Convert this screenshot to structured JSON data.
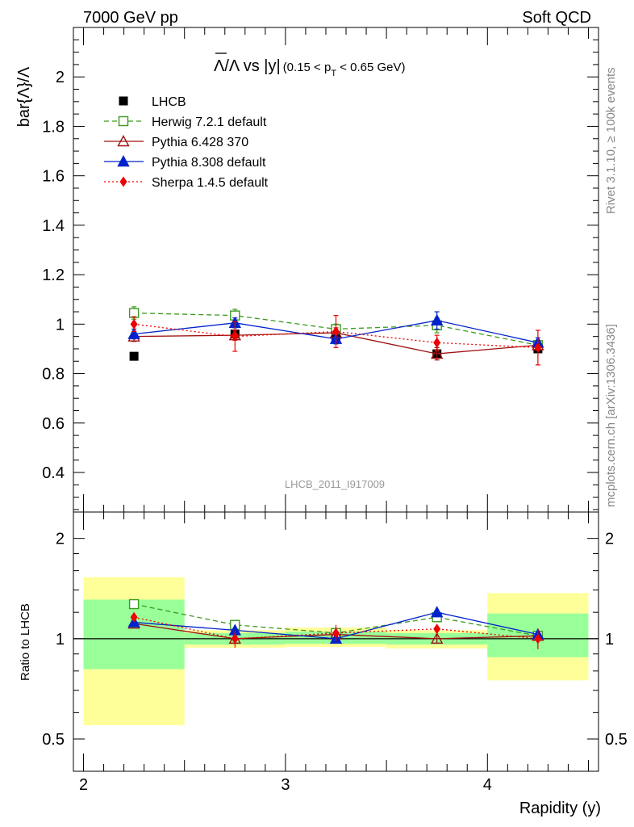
{
  "header": {
    "left": "7000 GeV pp",
    "right": "Soft QCD"
  },
  "side_labels": {
    "rivet": "Rivet 3.1.10, ≥ 100k events",
    "mcplots": "mcplots.cern.ch [arXiv:1306.3436]"
  },
  "chart_data": [
    {
      "type": "scatter",
      "panel": "main",
      "title_parts": {
        "quantity": "Λ/Λ vs |y|",
        "cut_open": "(0.15 < p",
        "cut_sub": "T",
        "cut_close": " < 0.65 GeV)"
      },
      "ylabel": "bar{Λ}/Λ",
      "xlim": [
        1.95,
        4.55
      ],
      "ylim": [
        0.24,
        2.2
      ],
      "yticks": [
        0.4,
        0.6,
        0.8,
        1.0,
        1.2,
        1.4,
        1.6,
        1.8,
        2.0
      ],
      "ytick_labels": [
        "0.4",
        "0.6",
        "0.8",
        "1",
        "1.2",
        "1.4",
        "1.6",
        "1.8",
        "2"
      ],
      "watermark": "LHCB_2011_I917009",
      "series": [
        {
          "name": "LHCB",
          "color": "#000000",
          "marker": "square-filled",
          "line": "none",
          "x": [
            2.25,
            2.75,
            3.25,
            3.75,
            4.25
          ],
          "y": [
            0.87,
            0.96,
            0.94,
            0.88,
            0.9
          ],
          "err": [
            0.01,
            0.01,
            0.01,
            0.01,
            0.01
          ]
        },
        {
          "name": "Herwig 7.2.1 default",
          "color": "#3a9a1e",
          "marker": "square-open",
          "line": "dashed",
          "x": [
            2.25,
            2.75,
            3.25,
            3.75,
            4.25
          ],
          "y": [
            1.045,
            1.035,
            0.98,
            0.995,
            0.915
          ],
          "err": [
            0.025,
            0.025,
            0.02,
            0.03,
            0.02
          ]
        },
        {
          "name": "Pythia 6.428 370",
          "color": "#a01010",
          "marker": "triangle-open",
          "line": "solid",
          "x": [
            2.25,
            2.75,
            3.25,
            3.75,
            4.25
          ],
          "y": [
            0.95,
            0.955,
            0.965,
            0.88,
            0.915
          ],
          "err": [
            0.02,
            0.02,
            0.02,
            0.025,
            0.02
          ]
        },
        {
          "name": "Pythia 8.308 default",
          "color": "#0022cc",
          "marker": "triangle-filled",
          "line": "solid",
          "x": [
            2.25,
            2.75,
            3.25,
            3.75,
            4.25
          ],
          "y": [
            0.96,
            1.005,
            0.94,
            1.015,
            0.925
          ],
          "err": [
            0.02,
            0.02,
            0.02,
            0.035,
            0.02
          ]
        },
        {
          "name": "Sherpa 1.4.5 default",
          "color": "#ee0000",
          "marker": "diamond-filled",
          "line": "dotted",
          "x": [
            2.25,
            2.75,
            3.25,
            3.75,
            4.25
          ],
          "y": [
            1.0,
            0.95,
            0.97,
            0.925,
            0.905
          ],
          "err": [
            0.03,
            0.06,
            0.065,
            0.03,
            0.07
          ]
        }
      ]
    },
    {
      "type": "scatter",
      "panel": "ratio",
      "ylabel": "Ratio to LHCB",
      "xlabel": "Rapidity (y)",
      "xlim": [
        1.95,
        4.55
      ],
      "ylim": [
        0.4,
        2.4
      ],
      "yscale": "log",
      "xticks": [
        2,
        3,
        4
      ],
      "xtick_labels": [
        "2",
        "3",
        "4"
      ],
      "yticks": [
        0.5,
        1,
        2
      ],
      "ytick_labels": [
        "0.5",
        "1",
        "2"
      ],
      "reference_line": 1,
      "uncertainty_bands": [
        {
          "x0": 2.0,
          "x1": 2.5,
          "yellow": [
            0.55,
            1.53
          ],
          "green": [
            0.81,
            1.31
          ]
        },
        {
          "x0": 2.5,
          "x1": 3.0,
          "yellow": [
            0.94,
            1.06
          ],
          "green": [
            0.96,
            1.04
          ]
        },
        {
          "x0": 3.0,
          "x1": 3.5,
          "yellow": [
            0.945,
            1.08
          ],
          "green": [
            0.965,
            1.05
          ]
        },
        {
          "x0": 3.5,
          "x1": 4.0,
          "yellow": [
            0.935,
            1.06
          ],
          "green": [
            0.96,
            1.04
          ]
        },
        {
          "x0": 4.0,
          "x1": 4.5,
          "yellow": [
            0.75,
            1.37
          ],
          "green": [
            0.88,
            1.19
          ]
        }
      ],
      "series": [
        {
          "name": "Herwig 7.2.1 default",
          "x": [
            2.25,
            2.75,
            3.25,
            3.75,
            4.25
          ],
          "y": [
            1.27,
            1.1,
            1.04,
            1.16,
            1.02
          ],
          "err": [
            0.03,
            0.03,
            0.02,
            0.03,
            0.02
          ]
        },
        {
          "name": "Pythia 6.428 370",
          "x": [
            2.25,
            2.75,
            3.25,
            3.75,
            4.25
          ],
          "y": [
            1.11,
            1.0,
            1.03,
            1.0,
            1.02
          ],
          "err": [
            0.02,
            0.02,
            0.02,
            0.03,
            0.02
          ]
        },
        {
          "name": "Pythia 8.308 default",
          "x": [
            2.25,
            2.75,
            3.25,
            3.75,
            4.25
          ],
          "y": [
            1.12,
            1.06,
            1.0,
            1.2,
            1.03
          ],
          "err": [
            0.02,
            0.02,
            0.02,
            0.04,
            0.02
          ]
        },
        {
          "name": "Sherpa 1.4.5 default",
          "x": [
            2.25,
            2.75,
            3.25,
            3.75,
            4.25
          ],
          "y": [
            1.16,
            1.0,
            1.04,
            1.07,
            1.0
          ],
          "err": [
            0.03,
            0.06,
            0.06,
            0.03,
            0.07
          ]
        }
      ]
    }
  ]
}
